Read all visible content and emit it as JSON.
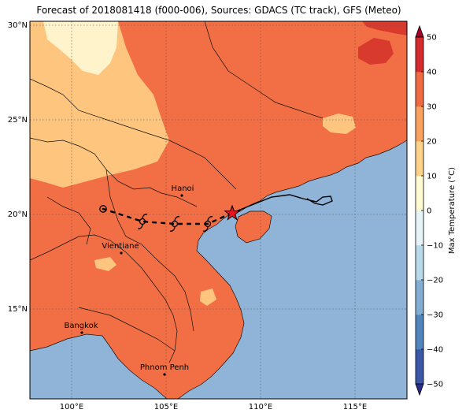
{
  "title": "Forecast of 2018081418 (f000-006), Sources: GDACS (TC track), GFS (Meteo)",
  "lat_labels": [
    "30°N",
    "25°N",
    "20°N",
    "15°N"
  ],
  "lon_labels": [
    "100°E",
    "105°E",
    "110°E",
    "115°E"
  ],
  "cities": [
    {
      "name": "Hanoi",
      "lon": 105.8,
      "lat": 21.0
    },
    {
      "name": "Vientiane",
      "lon": 102.6,
      "lat": 18.0
    },
    {
      "name": "Bangkok",
      "lon": 100.5,
      "lat": 13.75
    },
    {
      "name": "Phnom Penh",
      "lon": 104.9,
      "lat": 11.55
    }
  ],
  "track": {
    "current_position": {
      "lon": 108.5,
      "lat": 20.1
    },
    "forecast_points": [
      {
        "lon": 107.2,
        "lat": 19.5
      },
      {
        "lon": 105.5,
        "lat": 19.5
      },
      {
        "lon": 103.8,
        "lat": 19.6
      },
      {
        "lon": 101.7,
        "lat": 20.3
      }
    ]
  },
  "colorbar": {
    "label": "Max Temperature (°C)",
    "ticks": [
      "50",
      "40",
      "30",
      "20",
      "10",
      "0",
      "−10",
      "−20",
      "−30",
      "−40",
      "−50"
    ],
    "colors": [
      "#2b2c8c",
      "#3b57a7",
      "#5185bc",
      "#83aed2",
      "#b7d9e8",
      "#e6f4f8",
      "#fffbd0",
      "#fed288",
      "#f9a25e",
      "#f06b40",
      "#d42a2b",
      "#a50026"
    ]
  },
  "colors": {
    "land_warm": "#f26f45",
    "land_hot": "#d93a2e",
    "land_mild": "#fdc57e",
    "land_cool": "#fff3cc",
    "sea": "#8fb4d8"
  }
}
